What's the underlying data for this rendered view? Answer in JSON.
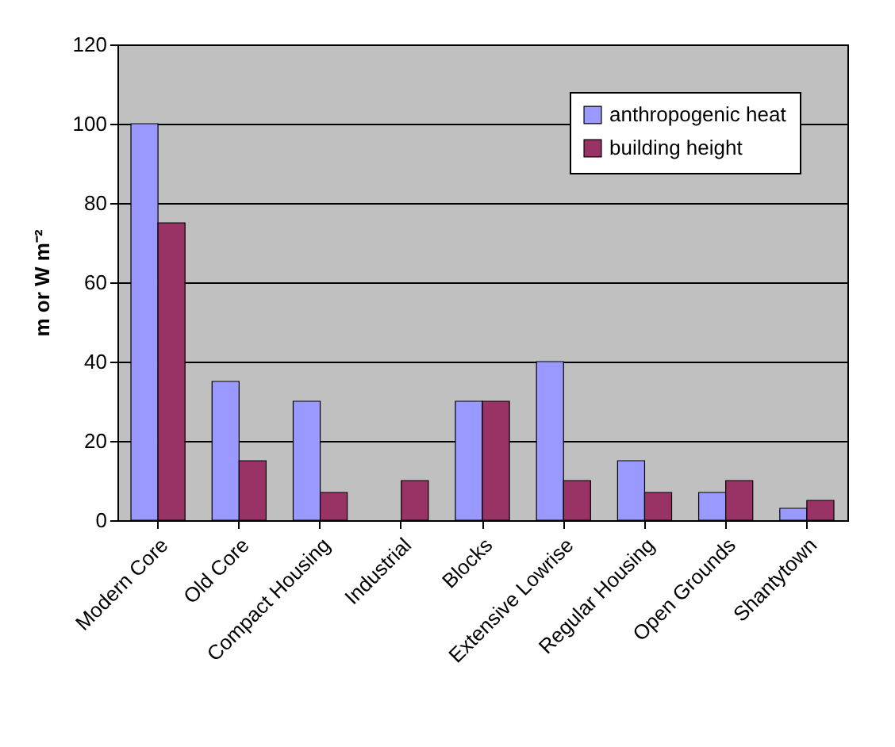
{
  "chart_data": {
    "type": "bar",
    "ylabel": "m or W m⁻²",
    "categories": [
      "Modern Core",
      "Old Core",
      "Compact Housing",
      "Industrial",
      "Blocks",
      "Extensive Lowrise",
      "Regular Housing",
      "Open Grounds",
      "Shantytown"
    ],
    "series": [
      {
        "name": "anthropogenic heat",
        "color": "#9999ff",
        "values": [
          100,
          35,
          30,
          null,
          30,
          40,
          15,
          7,
          3
        ]
      },
      {
        "name": "building height",
        "color": "#993366",
        "values": [
          75,
          15,
          7,
          10,
          30,
          10,
          7,
          10,
          5
        ]
      }
    ],
    "ylim": [
      0,
      120
    ],
    "yticks": [
      0,
      20,
      40,
      60,
      80,
      100,
      120
    ],
    "grid": "y",
    "legend": "top right"
  }
}
